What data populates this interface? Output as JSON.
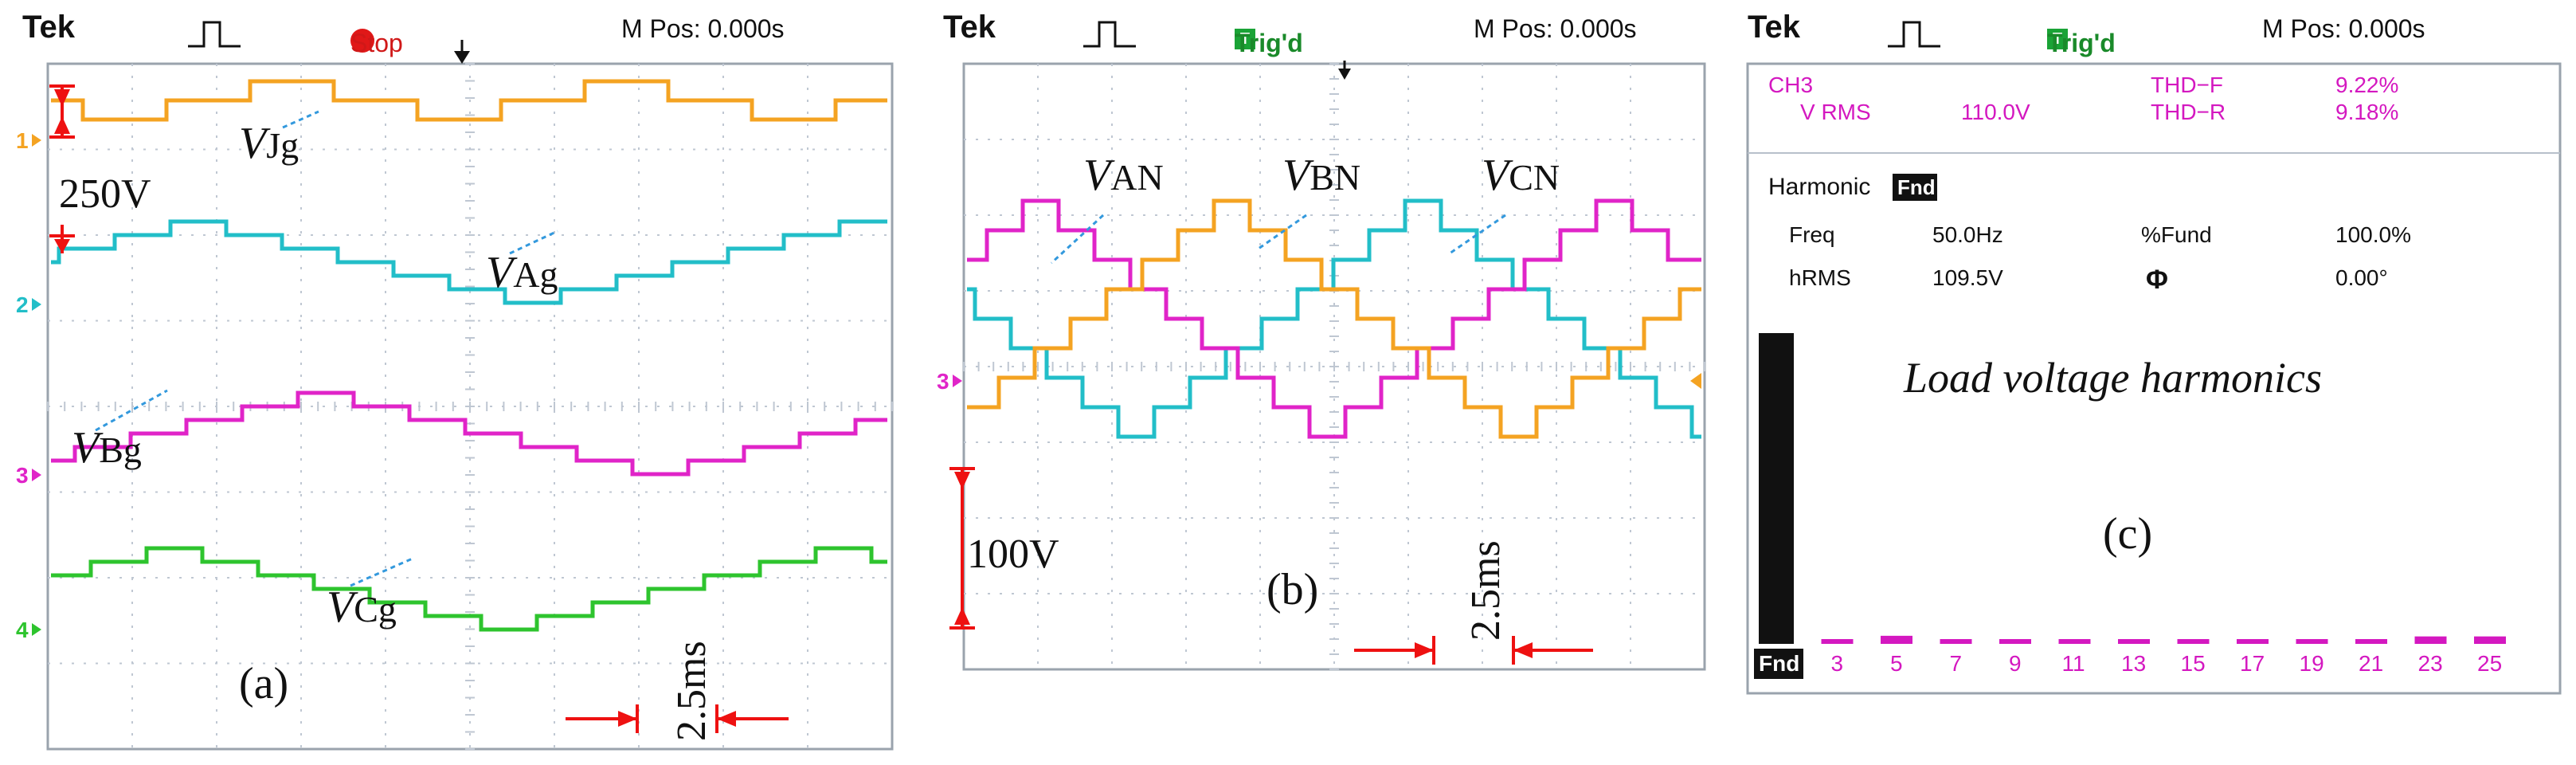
{
  "colors": {
    "orange": "#f4a322",
    "cyan": "#22bec8",
    "magenta": "#e024c8",
    "green": "#2ec42e",
    "red": "#ee1111",
    "grid": "#bfc7d2",
    "blue": "#3399dd",
    "screen": "#ffffff"
  },
  "panels": [
    {
      "id": "a",
      "header": {
        "brand": "Tek",
        "trigger": "Stop",
        "mpos": "M Pos: 0.000s"
      },
      "caption": "(a)",
      "scale_voltage": "250V",
      "scale_time": "2.5ms",
      "channel_markers": [
        "1",
        "2",
        "3",
        "4"
      ],
      "chart_data": {
        "type": "line",
        "x_unit": "ms",
        "x_per_division": 2.5,
        "series": [
          {
            "name": "VJg",
            "label_main": "V",
            "label_sub": "Jg",
            "channel": "1",
            "color": "orange",
            "period_ms": 20,
            "levels": [
              0,
              1,
              2,
              1,
              0,
              1,
              2,
              1,
              0
            ],
            "level_step_V": 125
          },
          {
            "name": "VAg",
            "label_main": "V",
            "label_sub": "Ag",
            "channel": "2",
            "color": "cyan",
            "period_ms": 20,
            "levels": [
              0,
              1,
              2,
              3,
              4,
              5,
              6,
              5,
              4,
              3,
              2,
              1,
              0
            ],
            "level_step_V": 125
          },
          {
            "name": "VBg",
            "label_main": "V",
            "label_sub": "Bg",
            "channel": "3",
            "color": "magenta",
            "period_ms": 20,
            "levels": [
              0,
              1,
              2,
              3,
              4,
              5,
              6,
              5,
              4,
              3,
              2,
              1,
              0
            ],
            "level_step_V": 125
          },
          {
            "name": "VCg",
            "label_main": "V",
            "label_sub": "Cg",
            "channel": "4",
            "color": "green",
            "period_ms": 20,
            "levels": [
              0,
              1,
              2,
              3,
              4,
              5,
              6,
              5,
              4,
              3,
              2,
              1,
              0
            ],
            "level_step_V": 125
          }
        ]
      }
    },
    {
      "id": "b",
      "header": {
        "brand": "Tek",
        "trigger": "Trig'd",
        "trigger_box": "T",
        "mpos": "M Pos: 0.000s"
      },
      "caption": "(b)",
      "scale_voltage": "100V",
      "scale_time": "2.5ms",
      "channel_markers": [
        "3"
      ],
      "chart_data": {
        "type": "line",
        "x_unit": "ms",
        "x_per_division": 2.5,
        "series": [
          {
            "name": "VAN",
            "label_main": "V",
            "label_sub": "AN",
            "color": "cyan",
            "period_ms": 20,
            "levels": [
              -2,
              -1,
              0,
              1,
              2,
              3,
              4,
              3,
              2,
              1,
              0,
              -1,
              -2,
              -3,
              -4,
              -3,
              -2
            ],
            "level_step_V": 41.25,
            "phase_deg": 0
          },
          {
            "name": "VBN",
            "label_main": "V",
            "label_sub": "BN",
            "color": "magenta",
            "period_ms": 20,
            "levels": [
              -2,
              -1,
              0,
              1,
              2,
              3,
              4,
              3,
              2,
              1,
              0,
              -1,
              -2,
              -3,
              -4,
              -3,
              -2
            ],
            "level_step_V": 41.25,
            "phase_deg": -120
          },
          {
            "name": "VCN",
            "label_main": "V",
            "label_sub": "CN",
            "color": "orange",
            "period_ms": 20,
            "levels": [
              -2,
              -1,
              0,
              1,
              2,
              3,
              4,
              3,
              2,
              1,
              0,
              -1,
              -2,
              -3,
              -4,
              -3,
              -2
            ],
            "level_step_V": 41.25,
            "phase_deg": 120
          }
        ]
      }
    },
    {
      "id": "c",
      "header": {
        "brand": "Tek",
        "trigger": "Trig'd",
        "trigger_box": "T",
        "mpos": "M Pos: 0.000s"
      },
      "caption": "(c)",
      "title": "Load voltage harmonics",
      "readout": {
        "channel": "CH3",
        "vrms_label": "V RMS",
        "vrms_value": "110.0V",
        "thdf_label": "THD−F",
        "thdf_value": "9.22%",
        "thdr_label": "THD−R",
        "thdr_value": "9.18%",
        "harmonic_label": "Harmonic",
        "harmonic_sel": "Fnd",
        "freq_label": "Freq",
        "freq_value": "50.0Hz",
        "fund_label": "%Fund",
        "fund_value": "100.0%",
        "hrms_label": "hRMS",
        "hrms_value": "109.5V",
        "phase_label": "Φ",
        "phase_value": "0.00°"
      },
      "chart_data": {
        "type": "bar",
        "categories": [
          "Fnd",
          "3",
          "5",
          "7",
          "9",
          "11",
          "13",
          "15",
          "17",
          "19",
          "21",
          "23",
          "25"
        ],
        "values": [
          100,
          0.3,
          2.6,
          1.5,
          0.5,
          0.4,
          0.4,
          0.4,
          0.3,
          0.3,
          0.3,
          2.4,
          2.4
        ],
        "ylim": [
          0,
          100
        ],
        "ylabel": "%Fund"
      }
    }
  ]
}
